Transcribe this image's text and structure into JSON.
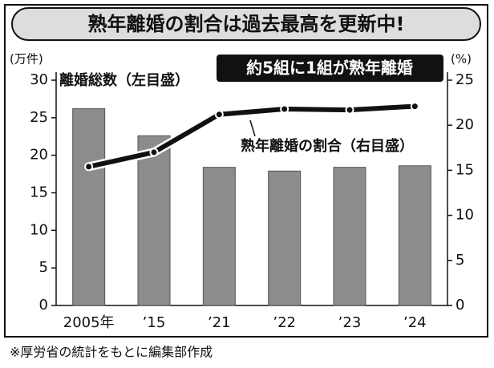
{
  "chart_data": {
    "type": "bar",
    "title": "熟年離婚の割合は過去最高を更新中!",
    "y_unit": "(万件)",
    "y2_unit": "(%)",
    "categories": [
      "2005年",
      "’15",
      "’21",
      "’22",
      "’23",
      "’24"
    ],
    "series": [
      {
        "type": "bar",
        "color": "#8c8c8c",
        "values": [
          26.2,
          22.6,
          18.4,
          17.9,
          18.4,
          18.6
        ]
      },
      {
        "type": "line",
        "axis": "y2",
        "color": "#111111",
        "values": [
          15.4,
          17.0,
          21.2,
          21.8,
          21.7,
          22.1
        ]
      }
    ],
    "ylim": [
      0,
      30
    ],
    "yticks": [
      0,
      5,
      10,
      15,
      20,
      25,
      30
    ],
    "y2lim": [
      0,
      25
    ],
    "y2ticks": [
      0,
      5,
      10,
      15,
      20,
      25
    ],
    "annotations": [
      "離婚総数（左目盛）",
      "約5組に1組が熟年離婚",
      "熟年離婚の割合（右目盛）"
    ],
    "note": "※厚労省の統計をもとに編集部作成"
  }
}
